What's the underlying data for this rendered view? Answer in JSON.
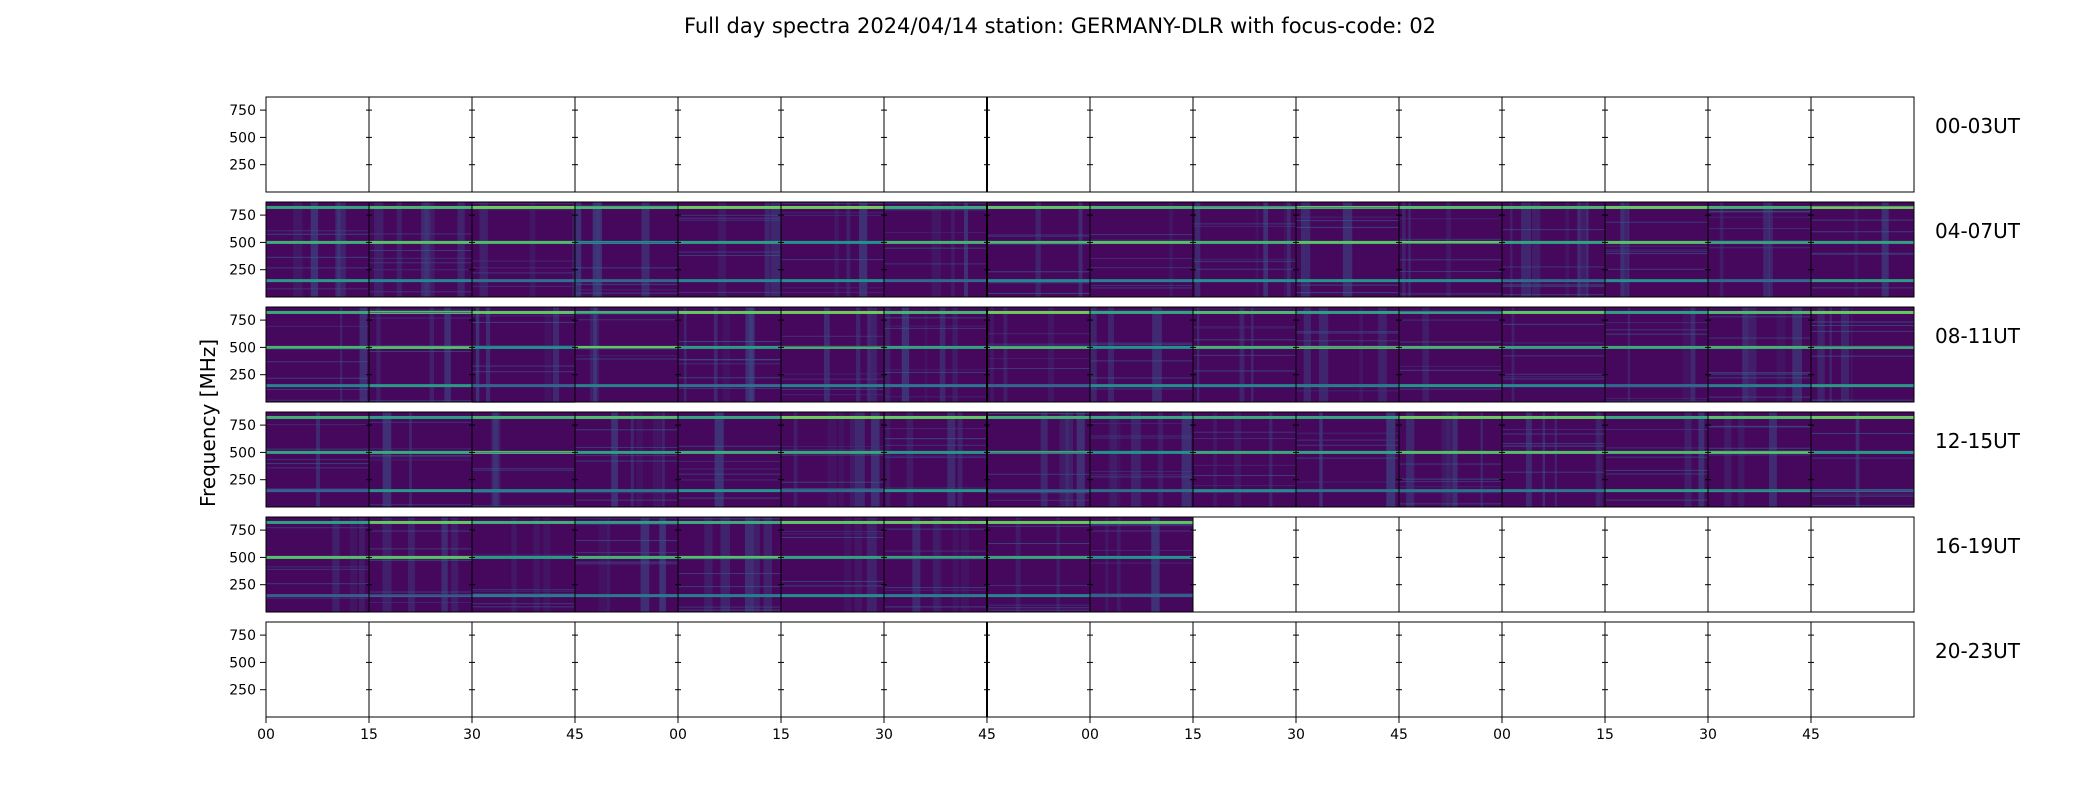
{
  "chart_data": {
    "type": "heatmap",
    "title": "Full day spectra 2024/04/14 station: GERMANY-DLR with focus-code: 02",
    "ylabel": "Frequency [MHz]",
    "xlabel": "",
    "ylim": [
      0,
      870
    ],
    "yticks": [
      250,
      500,
      750
    ],
    "xticks": [
      "00",
      "15",
      "30",
      "45",
      "00",
      "15",
      "30",
      "45",
      "00",
      "15",
      "30",
      "45",
      "00",
      "15",
      "30",
      "45"
    ],
    "rows": [
      {
        "label": "00-03UT",
        "panels_with_data": 0
      },
      {
        "label": "04-07UT",
        "panels_with_data": 16
      },
      {
        "label": "08-11UT",
        "panels_with_data": 16
      },
      {
        "label": "12-15UT",
        "panels_with_data": 16
      },
      {
        "label": "16-19UT",
        "panels_with_data": 9
      },
      {
        "label": "20-23UT",
        "panels_with_data": 0
      }
    ],
    "panels_per_row": 16,
    "panel_minutes": 15,
    "colormap": {
      "low": "#440154",
      "mid": "#31688e",
      "high": "#5ec962"
    },
    "bright_bands_mhz": [
      820,
      500,
      150
    ],
    "grid": false
  }
}
